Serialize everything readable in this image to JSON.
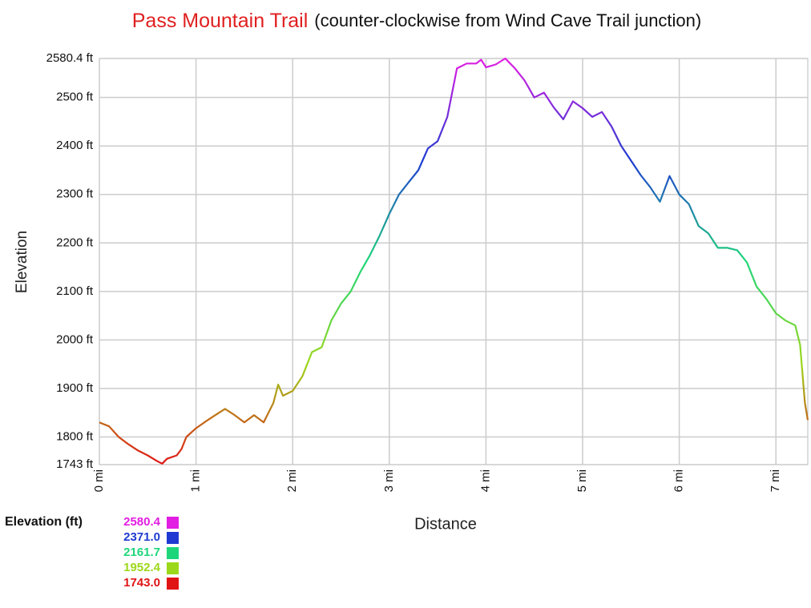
{
  "chart_data": {
    "type": "line",
    "title": "Pass Mountain Trail",
    "subtitle": "(counter-clockwise from Wind Cave Trail junction)",
    "x_label": "Distance",
    "y_label": "Elevation",
    "legend_title": "Elevation (ft)",
    "color_scale": [
      {
        "value": 2580.4,
        "label": "2580.4",
        "color": "#e21ee2"
      },
      {
        "value": 2371.0,
        "label": "2371.0",
        "color": "#1e3ad2"
      },
      {
        "value": 2161.7,
        "label": "2161.7",
        "color": "#1ed67a"
      },
      {
        "value": 1952.4,
        "label": "1952.4",
        "color": "#9cd81a"
      },
      {
        "value": 1743.0,
        "label": "1743.0",
        "color": "#e01414"
      }
    ],
    "grid": true,
    "xlim": [
      0,
      7.33
    ],
    "ylim": [
      1743,
      2580.4
    ],
    "xticks": [
      {
        "value": 0,
        "label": "0 mi"
      },
      {
        "value": 1,
        "label": "1 mi"
      },
      {
        "value": 2,
        "label": "2 mi"
      },
      {
        "value": 3,
        "label": "3 mi"
      },
      {
        "value": 4,
        "label": "4 mi"
      },
      {
        "value": 5,
        "label": "5 mi"
      },
      {
        "value": 6,
        "label": "6 mi"
      },
      {
        "value": 7,
        "label": "7 mi"
      }
    ],
    "yticks": [
      {
        "value": 1743,
        "label": "1743 ft"
      },
      {
        "value": 1800,
        "label": "1800 ft"
      },
      {
        "value": 1900,
        "label": "1900 ft"
      },
      {
        "value": 2000,
        "label": "2000 ft"
      },
      {
        "value": 2100,
        "label": "2100 ft"
      },
      {
        "value": 2200,
        "label": "2200 ft"
      },
      {
        "value": 2300,
        "label": "2300 ft"
      },
      {
        "value": 2400,
        "label": "2400 ft"
      },
      {
        "value": 2500,
        "label": "2500 ft"
      },
      {
        "value": 2580.4,
        "label": "2580.4 ft"
      }
    ],
    "x": [
      0,
      0.1,
      0.2,
      0.3,
      0.4,
      0.5,
      0.6,
      0.65,
      0.7,
      0.8,
      0.85,
      0.9,
      1.0,
      1.1,
      1.2,
      1.3,
      1.4,
      1.5,
      1.6,
      1.7,
      1.8,
      1.85,
      1.9,
      2.0,
      2.1,
      2.2,
      2.3,
      2.4,
      2.5,
      2.6,
      2.7,
      2.8,
      2.9,
      3.0,
      3.1,
      3.2,
      3.3,
      3.4,
      3.5,
      3.6,
      3.7,
      3.8,
      3.9,
      3.95,
      4.0,
      4.1,
      4.2,
      4.3,
      4.4,
      4.5,
      4.6,
      4.7,
      4.8,
      4.9,
      5.0,
      5.1,
      5.2,
      5.3,
      5.4,
      5.5,
      5.6,
      5.7,
      5.8,
      5.9,
      6.0,
      6.1,
      6.2,
      6.3,
      6.4,
      6.5,
      6.6,
      6.7,
      6.8,
      6.9,
      7.0,
      7.1,
      7.2,
      7.25,
      7.3,
      7.33
    ],
    "values": [
      1830,
      1822,
      1800,
      1785,
      1772,
      1762,
      1750,
      1745,
      1755,
      1762,
      1775,
      1800,
      1818,
      1832,
      1845,
      1858,
      1845,
      1830,
      1845,
      1830,
      1870,
      1908,
      1885,
      1895,
      1925,
      1975,
      1985,
      2040,
      2075,
      2100,
      2140,
      2175,
      2215,
      2260,
      2300,
      2325,
      2350,
      2395,
      2410,
      2460,
      2560,
      2570,
      2570,
      2578,
      2562,
      2568,
      2580.4,
      2560,
      2535,
      2500,
      2510,
      2480,
      2455,
      2492,
      2478,
      2460,
      2470,
      2440,
      2400,
      2370,
      2340,
      2315,
      2285,
      2338,
      2300,
      2280,
      2235,
      2220,
      2190,
      2190,
      2185,
      2160,
      2110,
      2085,
      2055,
      2040,
      2030,
      1990,
      1870,
      1835
    ]
  }
}
